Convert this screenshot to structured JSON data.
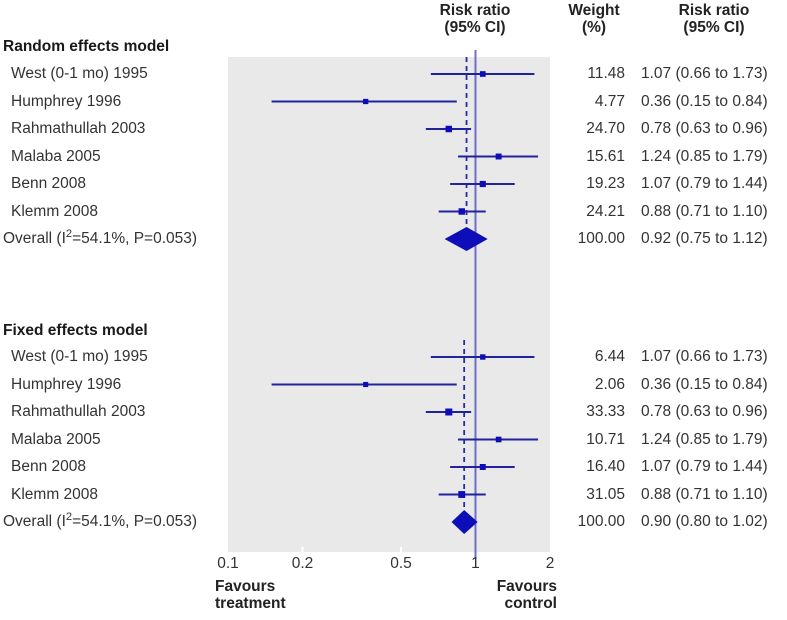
{
  "figure": {
    "kind": "forest plot"
  },
  "colors": {
    "panel_bg": "#e9e9e9",
    "marker_blue": "#0e0eb8",
    "ci_line": "#22229b",
    "reference_line": "#6e6ec6",
    "pooled_dashed": "#2a2aa6",
    "tick_white": "#ffffff",
    "text_dark": "#222222",
    "text_body": "#333333"
  },
  "chart_data": {
    "type": "forest",
    "effect_measure": "Risk ratio",
    "x_axis": {
      "scale": "log",
      "min": 0.1,
      "max": 2,
      "ticks": [
        0.1,
        0.2,
        0.5,
        1,
        2
      ],
      "tick_labels": [
        "0.1",
        "0.2",
        "0.5",
        "1",
        "2"
      ],
      "reference_value": 1,
      "favours_left": "Favours\ntreatment",
      "favours_right": "Favours\ncontrol"
    },
    "columns": {
      "plot_header": "Risk ratio\n(95% CI)",
      "weight_header": "Weight\n(%)",
      "estimate_header": "Risk ratio\n(95% CI)"
    },
    "sections": [
      {
        "title": "Random effects model",
        "studies": [
          {
            "label": "West (0-1 mo) 1995",
            "rr": 1.07,
            "ci_low": 0.66,
            "ci_high": 1.73,
            "weight": 11.48,
            "weight_text": "11.48",
            "estimate_text": "1.07 (0.66 to 1.73)"
          },
          {
            "label": "Humphrey 1996",
            "rr": 0.36,
            "ci_low": 0.15,
            "ci_high": 0.84,
            "weight": 4.77,
            "weight_text": "4.77",
            "estimate_text": "0.36 (0.15 to 0.84)"
          },
          {
            "label": "Rahmathullah 2003",
            "rr": 0.78,
            "ci_low": 0.63,
            "ci_high": 0.96,
            "weight": 24.7,
            "weight_text": "24.70",
            "estimate_text": "0.78 (0.63 to 0.96)"
          },
          {
            "label": "Malaba 2005",
            "rr": 1.24,
            "ci_low": 0.85,
            "ci_high": 1.79,
            "weight": 15.61,
            "weight_text": "15.61",
            "estimate_text": "1.24 (0.85 to 1.79)"
          },
          {
            "label": "Benn 2008",
            "rr": 1.07,
            "ci_low": 0.79,
            "ci_high": 1.44,
            "weight": 19.23,
            "weight_text": "19.23",
            "estimate_text": "1.07 (0.79 to 1.44)"
          },
          {
            "label": "Klemm 2008",
            "rr": 0.88,
            "ci_low": 0.71,
            "ci_high": 1.1,
            "weight": 24.21,
            "weight_text": "24.21",
            "estimate_text": "0.88 (0.71 to 1.10)"
          }
        ],
        "overall": {
          "label": "Overall (I²=54.1%, P=0.053)",
          "rr": 0.92,
          "ci_low": 0.75,
          "ci_high": 1.12,
          "weight_text": "100.00",
          "estimate_text": "0.92 (0.75 to 1.12)"
        }
      },
      {
        "title": "Fixed effects model",
        "studies": [
          {
            "label": "West (0-1 mo) 1995",
            "rr": 1.07,
            "ci_low": 0.66,
            "ci_high": 1.73,
            "weight": 6.44,
            "weight_text": "6.44",
            "estimate_text": "1.07 (0.66 to 1.73)"
          },
          {
            "label": "Humphrey 1996",
            "rr": 0.36,
            "ci_low": 0.15,
            "ci_high": 0.84,
            "weight": 2.06,
            "weight_text": "2.06",
            "estimate_text": "0.36 (0.15 to 0.84)"
          },
          {
            "label": "Rahmathullah 2003",
            "rr": 0.78,
            "ci_low": 0.63,
            "ci_high": 0.96,
            "weight": 33.33,
            "weight_text": "33.33",
            "estimate_text": "0.78 (0.63 to 0.96)"
          },
          {
            "label": "Malaba 2005",
            "rr": 1.24,
            "ci_low": 0.85,
            "ci_high": 1.79,
            "weight": 10.71,
            "weight_text": "10.71",
            "estimate_text": "1.24 (0.85 to 1.79)"
          },
          {
            "label": "Benn 2008",
            "rr": 1.07,
            "ci_low": 0.79,
            "ci_high": 1.44,
            "weight": 16.4,
            "weight_text": "16.40",
            "estimate_text": "1.07 (0.79 to 1.44)"
          },
          {
            "label": "Klemm 2008",
            "rr": 0.88,
            "ci_low": 0.71,
            "ci_high": 1.1,
            "weight": 31.05,
            "weight_text": "31.05",
            "estimate_text": "0.88 (0.71 to 1.10)"
          }
        ],
        "overall": {
          "label": "Overall (I²=54.1%, P=0.053)",
          "rr": 0.9,
          "ci_low": 0.8,
          "ci_high": 1.02,
          "weight_text": "100.00",
          "estimate_text": "0.90 (0.80 to 1.02)"
        }
      }
    ]
  }
}
